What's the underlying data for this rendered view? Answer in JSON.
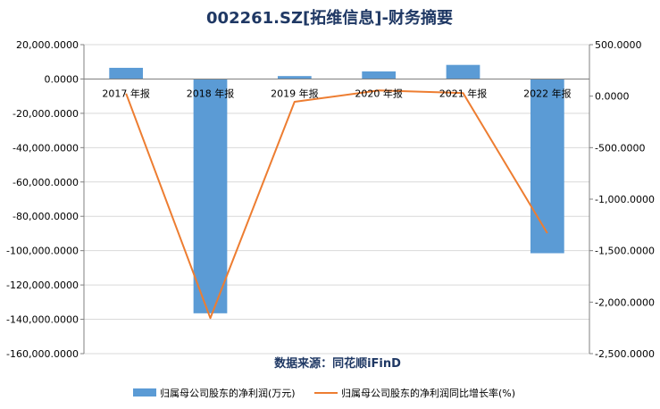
{
  "chart_data": {
    "type": "bar+line",
    "title": "002261.SZ[拓维信息]-财务摘要",
    "source": "数据来源：同花顺iFinD",
    "categories": [
      "2017 年报",
      "2018 年报",
      "2019 年报",
      "2020 年报",
      "2021 年报",
      "2022 年报"
    ],
    "series": [
      {
        "name": "归属母公司股东的净利润(万元)",
        "type": "bar",
        "axis": "left",
        "color": "#5b9bd5",
        "values": [
          6500,
          -136500,
          1700,
          4400,
          8200,
          -101500
        ]
      },
      {
        "name": "归属母公司股东的净利润同比增长率(%)",
        "type": "line",
        "axis": "right",
        "color": "#ed7d31",
        "values": [
          25,
          -2155,
          -55,
          55,
          30,
          -1330
        ]
      }
    ],
    "left_axis": {
      "ylim": [
        -160000,
        20000
      ],
      "ticks": [
        20000,
        0,
        -20000,
        -40000,
        -60000,
        -80000,
        -100000,
        -120000,
        -140000,
        -160000
      ],
      "tick_labels": [
        "20,000.0000",
        "0.0000",
        "-20,000.0000",
        "-40,000.0000",
        "-60,000.0000",
        "-80,000.0000",
        "-100,000.0000",
        "-120,000.0000",
        "-140,000.0000",
        "-160,000.0000"
      ]
    },
    "right_axis": {
      "ylim": [
        -2500,
        500
      ],
      "ticks": [
        500,
        0,
        -500,
        -1000,
        -1500,
        -2000,
        -2500
      ],
      "tick_labels": [
        "500.0000",
        "0.0000",
        "-500.0000",
        "-1,000.0000",
        "-1,500.0000",
        "-2,000.0000",
        "-2,500.0000"
      ]
    },
    "grid": true,
    "legend_position": "bottom"
  }
}
